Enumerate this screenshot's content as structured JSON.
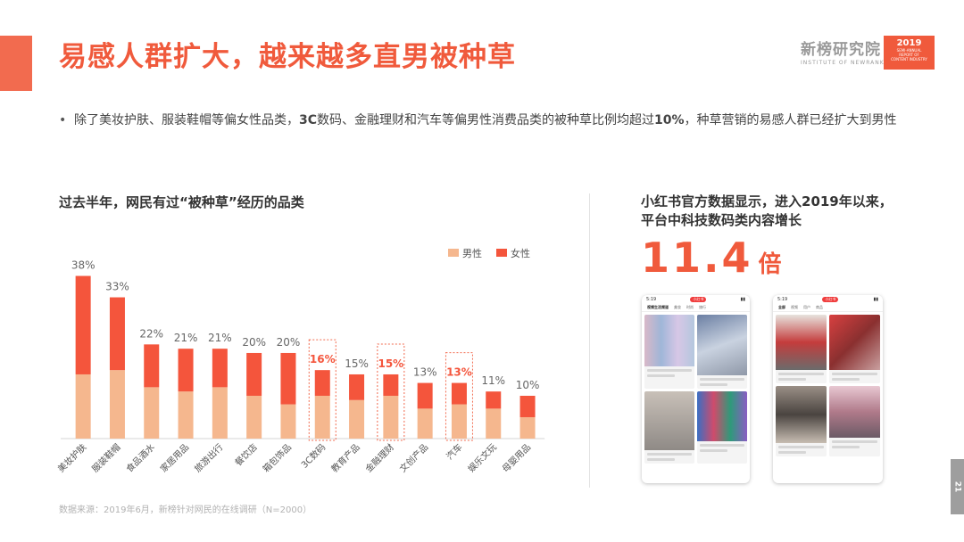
{
  "header": {
    "title": "易感人群扩大，越来越多直男被种草",
    "brand_name": "新榜研究院",
    "brand_sub": "INSTITUTE OF NEWRANK",
    "badge_year": "2019",
    "badge_line1": "SEMI-ANNUAL",
    "badge_line2": "REPORT OF",
    "badge_line3": "CONTENT INDUSTRY"
  },
  "bullet": {
    "symbol": "•",
    "text_1": "除了美妆护肤、服装鞋帽等偏女性品类，",
    "text_2": "3C",
    "text_3": "数码、金融理财和汽车等偏男性消费品类的被种草比例均超过",
    "text_4": "10%",
    "text_5": "，种草营销的易感人群已经扩大到男性"
  },
  "left_panel": {
    "title": "过去半年，网民有过“被种草”经历的品类"
  },
  "source": "数据来源：2019年6月，新榜针对网民的在线调研（N=2000）",
  "right_panel": {
    "title_line1": "小红书官方数据显示，进入2019年以来，",
    "title_line2": "平台中科技数码类内容增长",
    "big_value": "11.4",
    "big_unit": "倍",
    "phone1": {
      "time": "5:19",
      "pill": "小红书",
      "tabs": [
        "视频生活频道",
        "美妆",
        "时尚",
        "旅行"
      ]
    },
    "phone2": {
      "time": "5:19",
      "pill": "小红书",
      "tabs": [
        "全部",
        "视频",
        "用户",
        "商品"
      ]
    }
  },
  "page_number": "21",
  "colors": {
    "accent": "#f05a3c",
    "male": "#f5b78e",
    "female": "#f4553c",
    "axis": "#d4d4d4",
    "highlight_box": "#f26b4f"
  },
  "chart_data": {
    "type": "bar",
    "stacked": true,
    "categories": [
      "美妆护肤",
      "服装鞋帽",
      "食品酒水",
      "家居用品",
      "旅游出行",
      "餐饮店",
      "箱包饰品",
      "3C数码",
      "教育产品",
      "金融理财",
      "文创产品",
      "汽车",
      "娱乐文玩",
      "母婴用品"
    ],
    "totals": [
      38,
      33,
      22,
      21,
      21,
      20,
      20,
      16,
      15,
      15,
      13,
      13,
      11,
      10
    ],
    "total_labels": [
      "38%",
      "33%",
      "22%",
      "21%",
      "21%",
      "20%",
      "20%",
      "16%",
      "15%",
      "15%",
      "13%",
      "13%",
      "11%",
      "10%"
    ],
    "series": [
      {
        "name": "男性",
        "values": [
          15,
          16,
          12,
          11,
          12,
          10,
          8,
          10,
          9,
          10,
          7,
          8,
          7,
          5
        ]
      },
      {
        "name": "女性",
        "values": [
          23,
          17,
          10,
          10,
          9,
          10,
          12,
          6,
          6,
          5,
          6,
          5,
          4,
          5
        ]
      }
    ],
    "highlighted": [
      "3C数码",
      "金融理财",
      "汽车"
    ],
    "legend_position": "top-right",
    "ylim": [
      0,
      40
    ],
    "grid": false
  }
}
